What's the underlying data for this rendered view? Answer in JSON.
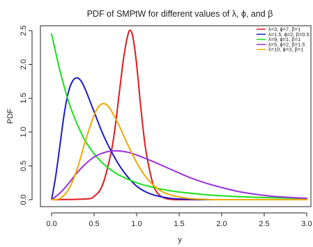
{
  "chart_data": {
    "type": "line",
    "title": "PDF of SMPtW for different values of λ, ϕ, and β",
    "xlabel": "y",
    "ylabel": "PDF",
    "xlim": [
      0,
      3.0
    ],
    "ylim": [
      0,
      2.5
    ],
    "x_ticks": [
      "0.0",
      "0.5",
      "1.0",
      "1.5",
      "2.0",
      "2.5",
      "3.0"
    ],
    "y_ticks": [
      "0.0",
      "0.5",
      "1.0",
      "1.5",
      "2.0",
      "2.5"
    ],
    "legend_position": "top-right",
    "grid": false,
    "series": [
      {
        "name": "λ=3, ϕ=7, β=1",
        "color": "#e0181c",
        "x": [
          0.0,
          0.4,
          0.5,
          0.6,
          0.7,
          0.75,
          0.8,
          0.85,
          0.9,
          0.93,
          0.96,
          1.0,
          1.05,
          1.1,
          1.15,
          1.2,
          1.25,
          1.3,
          1.35,
          1.4,
          1.45
        ],
        "y": [
          0.0,
          0.01,
          0.05,
          0.22,
          0.7,
          1.1,
          1.62,
          2.12,
          2.45,
          2.5,
          2.38,
          2.0,
          1.35,
          0.8,
          0.45,
          0.2,
          0.09,
          0.04,
          0.015,
          0.005,
          0.0
        ]
      },
      {
        "name": "λ=1.5, ϕ=2, β=0.5",
        "color": "#1a1ac8",
        "x": [
          0.0,
          0.05,
          0.1,
          0.15,
          0.2,
          0.25,
          0.3,
          0.35,
          0.4,
          0.5,
          0.6,
          0.7,
          0.8,
          0.9,
          1.0,
          1.1,
          1.2,
          1.3,
          1.4,
          1.5,
          1.6,
          1.7,
          1.8
        ],
        "y": [
          0.0,
          0.36,
          0.82,
          1.28,
          1.6,
          1.76,
          1.8,
          1.75,
          1.62,
          1.3,
          0.98,
          0.72,
          0.5,
          0.33,
          0.2,
          0.12,
          0.07,
          0.04,
          0.02,
          0.01,
          0.005,
          0.002,
          0.0
        ]
      },
      {
        "name": "λ=9, ϕ=1, β=1",
        "color": "#18e018",
        "x": [
          0.0,
          0.1,
          0.2,
          0.3,
          0.4,
          0.5,
          0.6,
          0.7,
          0.8,
          1.0,
          1.2,
          1.4,
          1.6,
          1.8,
          2.0,
          2.25,
          2.5,
          2.75,
          3.0
        ],
        "y": [
          2.45,
          1.9,
          1.45,
          1.12,
          0.86,
          0.68,
          0.54,
          0.44,
          0.36,
          0.25,
          0.18,
          0.13,
          0.1,
          0.075,
          0.058,
          0.042,
          0.031,
          0.024,
          0.018
        ]
      },
      {
        "name": "λ=5, ϕ=2, β=1.5",
        "color": "#9a30e0",
        "x": [
          0.0,
          0.1,
          0.2,
          0.3,
          0.4,
          0.5,
          0.6,
          0.7,
          0.8,
          0.9,
          1.0,
          1.2,
          1.4,
          1.6,
          1.8,
          2.0,
          2.2,
          2.4,
          2.6,
          2.8,
          3.0
        ],
        "y": [
          0.0,
          0.1,
          0.24,
          0.4,
          0.53,
          0.63,
          0.69,
          0.72,
          0.72,
          0.7,
          0.66,
          0.56,
          0.45,
          0.34,
          0.25,
          0.18,
          0.12,
          0.08,
          0.05,
          0.033,
          0.02
        ]
      },
      {
        "name": "λ=10, ϕ=3, β=1",
        "color": "#f0a800",
        "x": [
          0.0,
          0.1,
          0.2,
          0.3,
          0.4,
          0.5,
          0.55,
          0.6,
          0.65,
          0.7,
          0.8,
          0.9,
          1.0,
          1.1,
          1.2,
          1.3,
          1.4,
          1.5,
          1.6,
          1.7,
          1.8,
          1.9
        ],
        "y": [
          0.0,
          0.02,
          0.15,
          0.45,
          0.88,
          1.25,
          1.37,
          1.42,
          1.4,
          1.32,
          1.08,
          0.8,
          0.55,
          0.35,
          0.21,
          0.12,
          0.07,
          0.04,
          0.02,
          0.01,
          0.005,
          0.0
        ]
      }
    ]
  }
}
